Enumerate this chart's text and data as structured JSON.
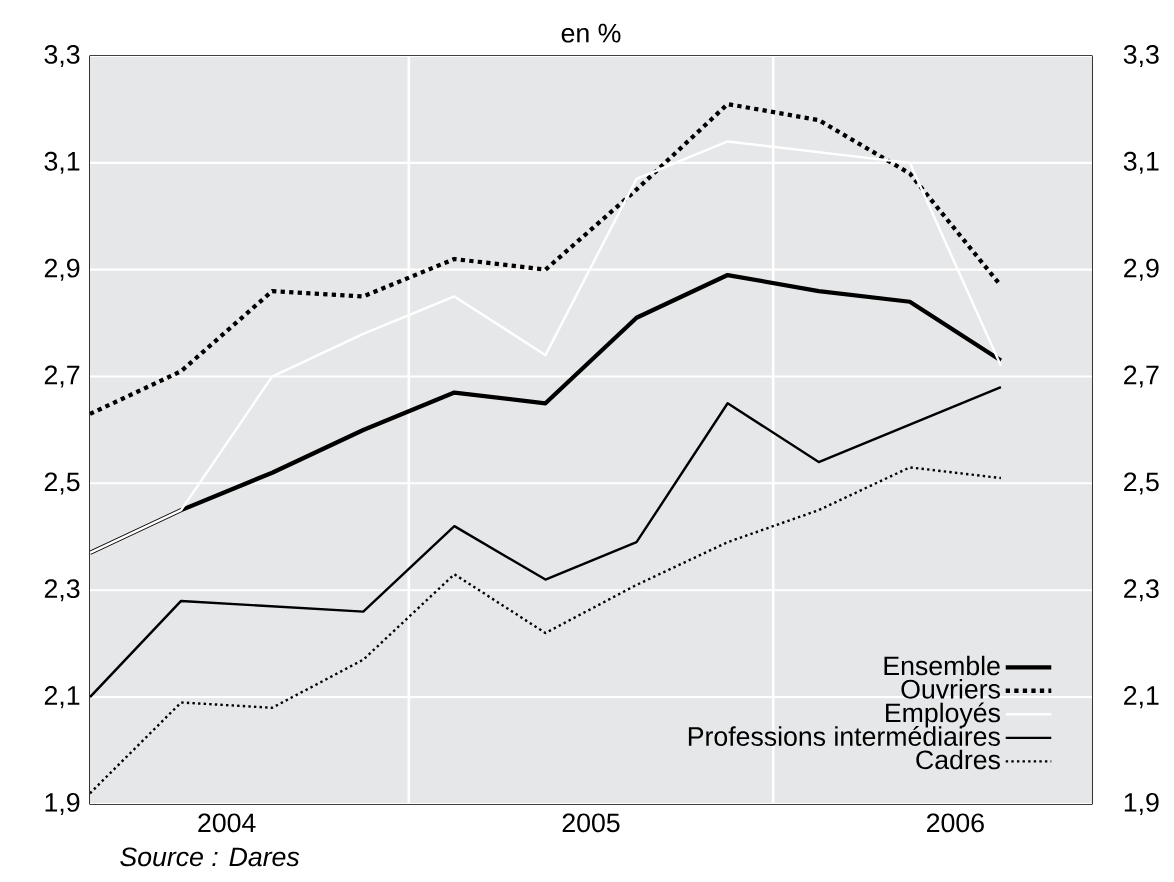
{
  "chart_data": {
    "type": "line",
    "title": "en %",
    "x": [
      2004.125,
      2004.375,
      2004.625,
      2004.875,
      2005.125,
      2005.375,
      2005.625,
      2005.875,
      2006.125,
      2006.375,
      2006.625
    ],
    "series": [
      {
        "name": "Ensemble",
        "color": "#000000",
        "line_style": "solid",
        "values": [
          2.37,
          2.45,
          2.52,
          2.6,
          2.67,
          2.65,
          2.81,
          2.89,
          2.86,
          2.84,
          2.73
        ]
      },
      {
        "name": "Ouvriers",
        "color": "#000000",
        "line_style": "dotted",
        "values": [
          2.63,
          2.71,
          2.86,
          2.85,
          2.92,
          2.9,
          3.05,
          3.21,
          3.18,
          3.08,
          2.87
        ]
      },
      {
        "name": "Employés",
        "color": "#ffffff",
        "line_style": "solid",
        "values": [
          2.37,
          2.45,
          2.7,
          2.78,
          2.85,
          2.74,
          3.07,
          3.14,
          3.12,
          3.1,
          2.72
        ]
      },
      {
        "name": "Professions intermédiaires",
        "color": "#000000",
        "line_style": "solid",
        "values": [
          2.1,
          2.28,
          2.27,
          2.26,
          2.42,
          2.32,
          2.39,
          2.65,
          2.54,
          2.61,
          2.68
        ]
      },
      {
        "name": "Cadres",
        "color": "#000000",
        "line_style": "dotted",
        "values": [
          1.92,
          2.09,
          2.08,
          2.17,
          2.33,
          2.22,
          2.31,
          2.39,
          2.45,
          2.53,
          2.51
        ]
      }
    ],
    "xlim": [
      2004.125,
      2006.875
    ],
    "xticks": [
      {
        "value": 2004.5,
        "label": "2004"
      },
      {
        "value": 2005.5,
        "label": "2005"
      },
      {
        "value": 2006.5,
        "label": "2006"
      }
    ],
    "ylim": [
      1.9,
      3.3
    ],
    "yticks": [
      {
        "value": 1.9,
        "label": "1,9"
      },
      {
        "value": 2.1,
        "label": "2,1"
      },
      {
        "value": 2.3,
        "label": "2,3"
      },
      {
        "value": 2.5,
        "label": "2,5"
      },
      {
        "value": 2.7,
        "label": "2,7"
      },
      {
        "value": 2.9,
        "label": "2,9"
      },
      {
        "value": 3.1,
        "label": "3,1"
      },
      {
        "value": 3.3,
        "label": "3,3"
      }
    ],
    "y2lim": [
      1.9,
      3.3
    ],
    "y2ticks": [
      {
        "value": 1.9,
        "label": "1,9"
      },
      {
        "value": 2.1,
        "label": "2,1"
      },
      {
        "value": 2.3,
        "label": "2,3"
      },
      {
        "value": 2.5,
        "label": "2,5"
      },
      {
        "value": 2.7,
        "label": "2,7"
      },
      {
        "value": 2.9,
        "label": "2,9"
      },
      {
        "value": 3.1,
        "label": "3,1"
      },
      {
        "value": 3.3,
        "label": "3,3"
      }
    ],
    "ref_lines": [
      {
        "axis": "x",
        "value": 2005,
        "color": "#ffffff"
      },
      {
        "axis": "x",
        "value": 2006,
        "color": "#ffffff"
      }
    ],
    "grid": "y",
    "legend": "bottom right",
    "marker": "none",
    "annotations": [
      "Source : Dares"
    ]
  }
}
